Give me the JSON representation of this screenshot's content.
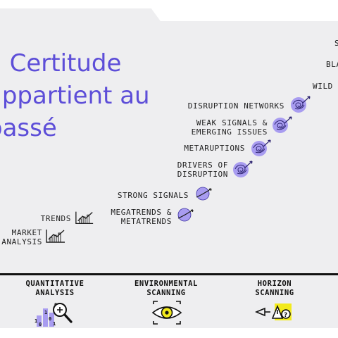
{
  "title": {
    "lines": [
      "a Certitude",
      "appartient au",
      "passé"
    ]
  },
  "items": [
    {
      "id": "market-analysis",
      "lines": [
        "MARKET",
        "ANALYSIS"
      ],
      "icon": "chart-icon"
    },
    {
      "id": "trends",
      "lines": [
        "TRENDS"
      ],
      "icon": "chart-icon"
    },
    {
      "id": "megatrends",
      "lines": [
        "MEGATRENDS &",
        "METATRENDS"
      ],
      "icon": "planet-icon"
    },
    {
      "id": "strong-signals",
      "lines": [
        "STRONG SIGNALS"
      ],
      "icon": "planet-icon"
    },
    {
      "id": "drivers",
      "lines": [
        "DRIVERS OF",
        "DISRUPTION"
      ],
      "icon": "scribble-icon"
    },
    {
      "id": "metaruptions",
      "lines": [
        "METARUPTIONS"
      ],
      "icon": "scribble-icon"
    },
    {
      "id": "weak-signals",
      "lines": [
        "WEAK SIGNALS &",
        "EMERGING ISSUES"
      ],
      "icon": "scribble-icon"
    },
    {
      "id": "disruption-networks",
      "lines": [
        "DISRUPTION NETWORKS"
      ],
      "icon": "scribble-icon"
    },
    {
      "id": "wild",
      "lines": [
        "WILD"
      ]
    },
    {
      "id": "bla",
      "lines": [
        "BLA"
      ]
    },
    {
      "id": "s",
      "lines": [
        "S"
      ]
    }
  ],
  "methods": [
    {
      "id": "quantitative",
      "lines": [
        "QUANTITATIVE",
        "ANALYSIS"
      ],
      "icon": "magnifier-data-icon"
    },
    {
      "id": "environmental",
      "lines": [
        "ENVIRONMENTAL",
        "SCANNING"
      ],
      "icon": "eye-icon"
    },
    {
      "id": "horizon",
      "lines": [
        "HORIZON",
        "SCANNING"
      ],
      "icon": "horizon-telescope-icon"
    }
  ],
  "colors": {
    "accent": "#5d4ed8",
    "icon_fill": "#a89cf0",
    "highlight": "#f2ea1c",
    "ink": "#1e1e1e"
  }
}
